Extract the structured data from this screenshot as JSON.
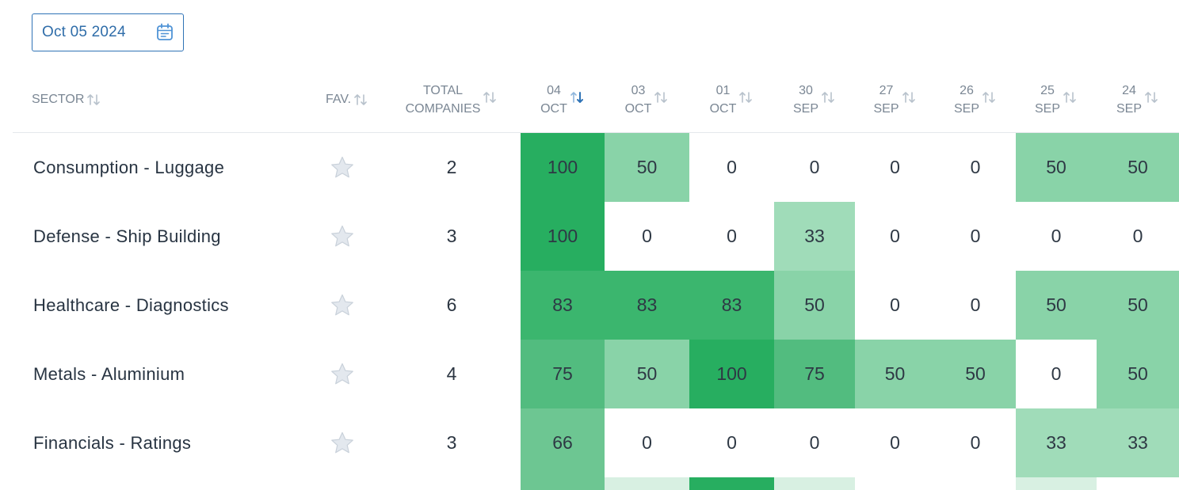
{
  "date_picker": {
    "value": "Oct 05 2024",
    "icon": "calendar-icon"
  },
  "colors": {
    "heat_100": "#27ae60",
    "heat_83": "#3bb66e",
    "heat_75": "#52bc7f",
    "heat_66": "#6dc692",
    "heat_50": "#89d3a8",
    "heat_33": "#a0dcb9",
    "heat_0": "#ffffff",
    "header_text": "#7b8794",
    "accent": "#2f6da9"
  },
  "columns": {
    "sector": "SECTOR",
    "fav": "FAV.",
    "total": [
      "TOTAL",
      "COMPANIES"
    ],
    "dates": [
      {
        "day": "04",
        "month": "OCT",
        "sorted": true
      },
      {
        "day": "03",
        "month": "OCT",
        "sorted": false
      },
      {
        "day": "01",
        "month": "OCT",
        "sorted": false
      },
      {
        "day": "30",
        "month": "SEP",
        "sorted": false
      },
      {
        "day": "27",
        "month": "SEP",
        "sorted": false
      },
      {
        "day": "26",
        "month": "SEP",
        "sorted": false
      },
      {
        "day": "25",
        "month": "SEP",
        "sorted": false
      },
      {
        "day": "24",
        "month": "SEP",
        "sorted": false
      }
    ]
  },
  "rows": [
    {
      "sector": "Consumption - Luggage",
      "total": "2",
      "values": [
        100,
        50,
        0,
        0,
        0,
        0,
        50,
        50
      ]
    },
    {
      "sector": "Defense - Ship Building",
      "total": "3",
      "values": [
        100,
        0,
        0,
        33,
        0,
        0,
        0,
        0
      ]
    },
    {
      "sector": "Healthcare - Diagnostics",
      "total": "6",
      "values": [
        83,
        83,
        83,
        50,
        0,
        0,
        50,
        50
      ]
    },
    {
      "sector": "Metals - Aluminium",
      "total": "4",
      "values": [
        75,
        50,
        100,
        75,
        50,
        50,
        0,
        50
      ]
    },
    {
      "sector": "Financials - Ratings",
      "total": "3",
      "values": [
        66,
        0,
        0,
        0,
        0,
        0,
        33,
        33
      ]
    }
  ],
  "partial_row_levels": [
    66,
    20,
    100,
    20,
    0,
    0,
    20,
    0
  ]
}
